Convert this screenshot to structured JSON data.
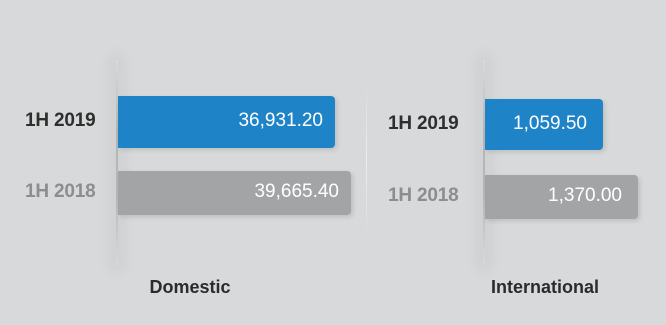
{
  "chart_data": [
    {
      "type": "bar",
      "orientation": "horizontal",
      "title": "",
      "group_label": "Domestic",
      "categories": [
        "1H 2019",
        "1H 2018"
      ],
      "values": [
        36931.2,
        39665.4
      ],
      "value_labels": [
        "36,931.20",
        "39,665.40"
      ],
      "colors": [
        "#1f84c7",
        "#a3a4a6"
      ],
      "label_colors": [
        "#2e2e2e",
        "#8c8d8f"
      ],
      "xlim": [
        0,
        39665.4
      ]
    },
    {
      "type": "bar",
      "orientation": "horizontal",
      "title": "",
      "group_label": "International",
      "categories": [
        "1H 2019",
        "1H 2018"
      ],
      "values": [
        1059.5,
        1370.0
      ],
      "value_labels": [
        "1,059.50",
        "1,370.00"
      ],
      "colors": [
        "#1f84c7",
        "#a3a4a6"
      ],
      "label_colors": [
        "#2e2e2e",
        "#8c8d8f"
      ],
      "xlim": [
        0,
        1370.0
      ]
    }
  ]
}
